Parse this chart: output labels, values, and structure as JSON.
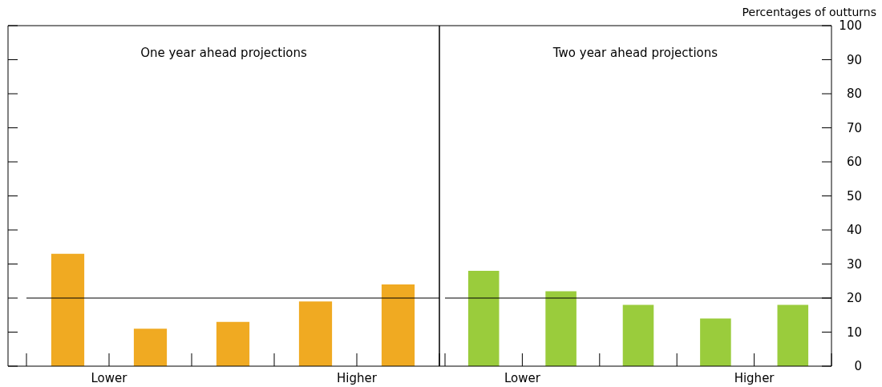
{
  "chart_data": [
    {
      "type": "bar",
      "title": "One year ahead projections",
      "categories": [
        null,
        null,
        null,
        null,
        null
      ],
      "values": [
        33,
        11,
        13,
        19,
        24
      ],
      "color": "#f0aa22",
      "annotations": [
        "Lower",
        "Higher"
      ],
      "ylim": [
        0,
        100
      ],
      "yticks": [
        0,
        10,
        20,
        30,
        40,
        50,
        60,
        70,
        80,
        90,
        100
      ],
      "tick_labels": false,
      "ref_lines": [
        {
          "axis": "y",
          "value": 20,
          "color": "#000000"
        }
      ]
    },
    {
      "type": "bar",
      "title": "Two year ahead projections",
      "ylabel": "Percentages of outturns",
      "categories": [
        null,
        null,
        null,
        null,
        null
      ],
      "values": [
        28,
        22,
        18,
        14,
        18
      ],
      "color": "#9acc3c",
      "annotations": [
        "Lower",
        "Higher"
      ],
      "ylim": [
        0,
        100
      ],
      "yticks": [
        0,
        10,
        20,
        30,
        40,
        50,
        60,
        70,
        80,
        90,
        100
      ],
      "ref_lines": [
        {
          "axis": "y",
          "value": 20,
          "color": "#000000"
        }
      ]
    }
  ]
}
